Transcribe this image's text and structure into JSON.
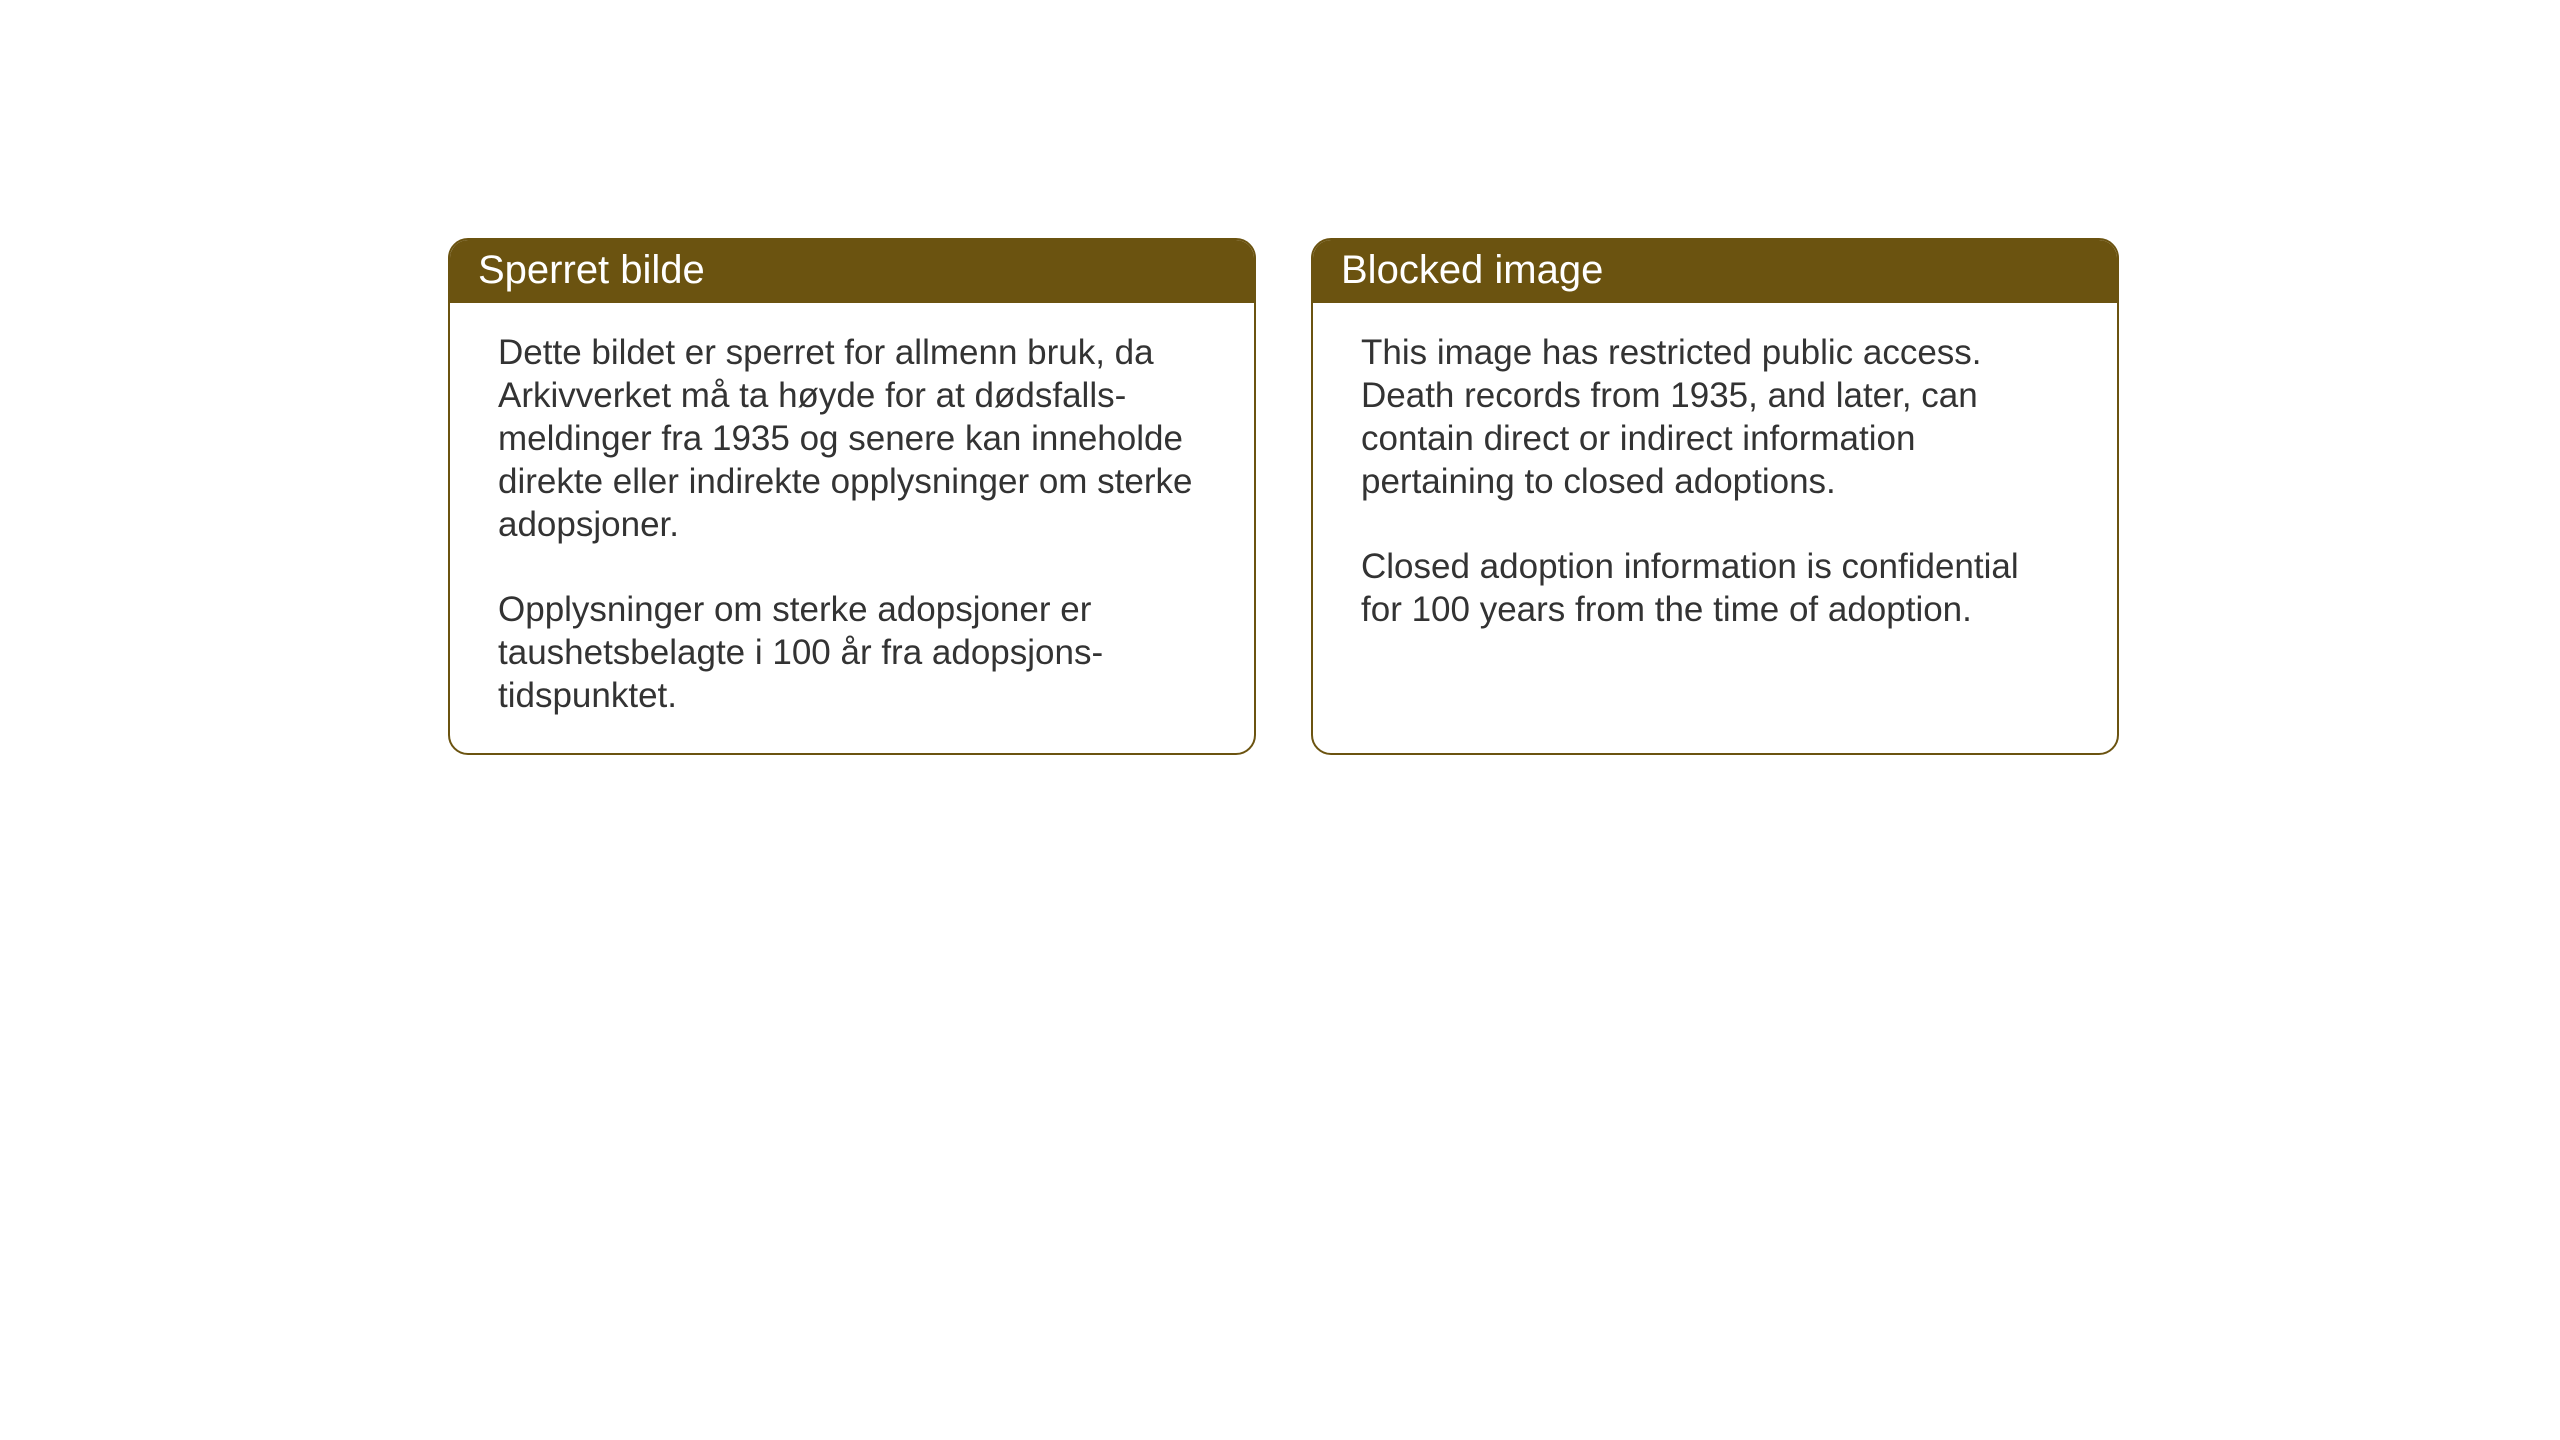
{
  "layout": {
    "background_color": "#ffffff",
    "header_color": "#6b5310",
    "border_color": "#6b5310",
    "text_color": "#333333",
    "header_text_color": "#ffffff",
    "border_radius": 20,
    "header_fontsize": 40,
    "body_fontsize": 35
  },
  "notices": {
    "norwegian": {
      "title": "Sperret bilde",
      "paragraph1": "Dette bildet er sperret for allmenn bruk, da Arkivverket må ta høyde for at dødsfalls-meldinger fra 1935 og senere kan inneholde direkte eller indirekte opplysninger om sterke adopsjoner.",
      "paragraph2": "Opplysninger om sterke adopsjoner er taushetsbelagte i 100 år fra adopsjons-tidspunktet."
    },
    "english": {
      "title": "Blocked image",
      "paragraph1": "This image has restricted public access. Death records from 1935, and later, can contain direct or indirect information pertaining to closed adoptions.",
      "paragraph2": "Closed adoption information is confidential for 100 years from the time of adoption."
    }
  }
}
